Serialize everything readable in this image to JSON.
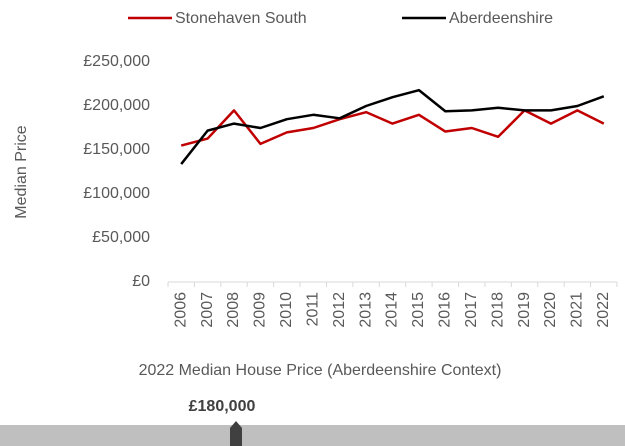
{
  "chart_data": {
    "type": "line",
    "ylabel": "Median Price",
    "categories": [
      "2006",
      "2007",
      "2008",
      "2009",
      "2010",
      "2011",
      "2012",
      "2013",
      "2014",
      "2015",
      "2016",
      "2017",
      "2018",
      "2019",
      "2020",
      "2021",
      "2022"
    ],
    "series": [
      {
        "name": "Stonehaven South",
        "color": "#c00000",
        "values": [
          155000,
          163000,
          195000,
          157000,
          170000,
          175000,
          185000,
          193000,
          180000,
          190000,
          171000,
          175000,
          165000,
          195000,
          180000,
          195000,
          180000
        ]
      },
      {
        "name": "Aberdeenshire",
        "color": "#000000",
        "values": [
          134000,
          172000,
          180000,
          175000,
          185000,
          190000,
          186000,
          200000,
          210000,
          218000,
          194000,
          195000,
          198000,
          195000,
          195000,
          200000,
          211000
        ]
      }
    ],
    "ylim": [
      0,
      250000
    ],
    "yticks": [
      {
        "value": 0,
        "label": "£0"
      },
      {
        "value": 50000,
        "label": "£50,000"
      },
      {
        "value": 100000,
        "label": "£100,000"
      },
      {
        "value": 150000,
        "label": "£150,000"
      },
      {
        "value": 200000,
        "label": "£200,000"
      },
      {
        "value": 250000,
        "label": "£250,000"
      }
    ],
    "grid": false,
    "legend": "top"
  },
  "gauge": {
    "title": "2022 Median House Price (Aberdeenshire Context)",
    "value": 180000,
    "value_label": "£180,000"
  }
}
